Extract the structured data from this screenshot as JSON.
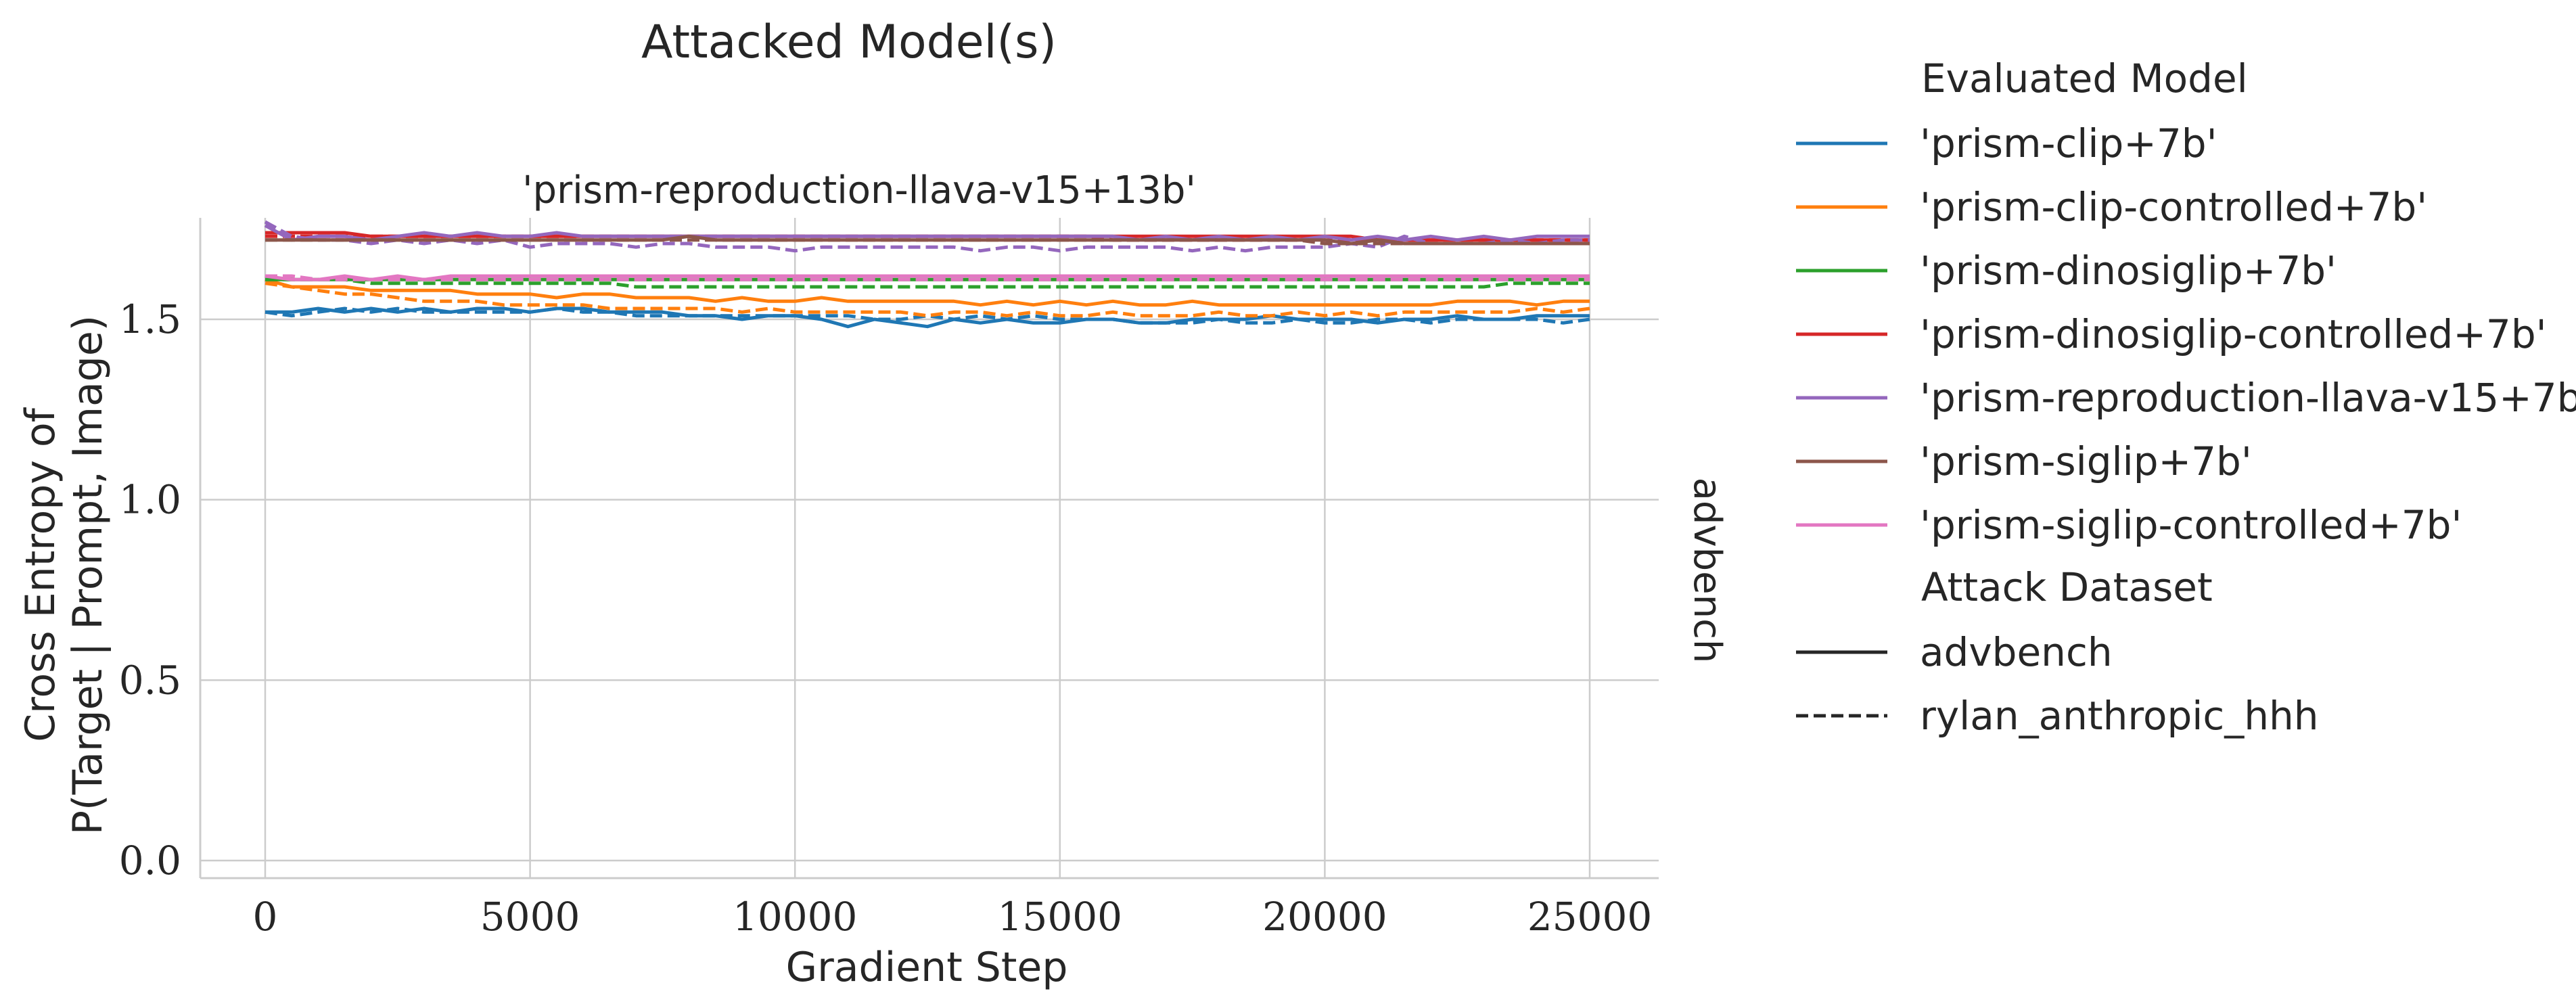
{
  "chart_data": {
    "type": "line",
    "suptitle": "Attacked Model(s)",
    "title": "'prism-reproduction-llava-v15+13b'",
    "xlabel": "Gradient Step",
    "ylabel_line1": "Cross Entropy of",
    "ylabel_line2": "P(Target | Prompt, Image)",
    "row_label": "advbench",
    "xlim": [
      -1200,
      26200
    ],
    "ylim": [
      -0.04,
      1.78
    ],
    "xticks": [
      0,
      5000,
      10000,
      15000,
      20000,
      25000
    ],
    "xtick_labels": [
      "0",
      "5000",
      "10000",
      "15000",
      "20000",
      "25000"
    ],
    "yticks": [
      0.0,
      0.5,
      1.0,
      1.5
    ],
    "ytick_labels": [
      "0.0",
      "0.5",
      "1.0",
      "1.5"
    ],
    "grid": true,
    "legend": {
      "placement": "right",
      "hue_title": "Evaluated Model",
      "hue_entries": [
        {
          "label": "'prism-clip+7b'",
          "color": "#1f77b4"
        },
        {
          "label": "'prism-clip-controlled+7b'",
          "color": "#ff7f0e"
        },
        {
          "label": "'prism-dinosiglip+7b'",
          "color": "#2ca02c"
        },
        {
          "label": "'prism-dinosiglip-controlled+7b'",
          "color": "#d62728"
        },
        {
          "label": "'prism-reproduction-llava-v15+7b'",
          "color": "#9467bd"
        },
        {
          "label": "'prism-siglip+7b'",
          "color": "#8c564b"
        },
        {
          "label": "'prism-siglip-controlled+7b'",
          "color": "#e377c2"
        }
      ],
      "style_title": "Attack Dataset",
      "style_entries": [
        {
          "label": "advbench",
          "dash": "solid"
        },
        {
          "label": "rylan_anthropic_hhh",
          "dash": "dashed"
        }
      ]
    },
    "x": [
      0,
      500,
      1000,
      1500,
      2000,
      2500,
      3000,
      3500,
      4000,
      4500,
      5000,
      5500,
      6000,
      6500,
      7000,
      7500,
      8000,
      8500,
      9000,
      9500,
      10000,
      10500,
      11000,
      11500,
      12000,
      12500,
      13000,
      13500,
      14000,
      14500,
      15000,
      15500,
      16000,
      16500,
      17000,
      17500,
      18000,
      18500,
      19000,
      19500,
      20000,
      20500,
      21000,
      21500,
      22000,
      22500,
      23000,
      23500,
      24000,
      24500,
      25000
    ],
    "series": [
      {
        "model": "'prism-clip+7b'",
        "dataset": "advbench",
        "color": "#1f77b4",
        "dash": "solid",
        "values": [
          1.52,
          1.52,
          1.53,
          1.52,
          1.53,
          1.52,
          1.53,
          1.52,
          1.53,
          1.53,
          1.52,
          1.53,
          1.53,
          1.52,
          1.52,
          1.52,
          1.51,
          1.51,
          1.5,
          1.51,
          1.51,
          1.5,
          1.48,
          1.5,
          1.49,
          1.48,
          1.5,
          1.49,
          1.5,
          1.49,
          1.49,
          1.5,
          1.5,
          1.49,
          1.49,
          1.5,
          1.5,
          1.5,
          1.51,
          1.5,
          1.5,
          1.5,
          1.49,
          1.5,
          1.5,
          1.51,
          1.5,
          1.5,
          1.51,
          1.51,
          1.51
        ]
      },
      {
        "model": "'prism-clip+7b'",
        "dataset": "rylan_anthropic_hhh",
        "color": "#1f77b4",
        "dash": "dashed",
        "values": [
          1.52,
          1.51,
          1.52,
          1.53,
          1.52,
          1.53,
          1.52,
          1.52,
          1.52,
          1.52,
          1.52,
          1.53,
          1.52,
          1.52,
          1.51,
          1.51,
          1.51,
          1.51,
          1.51,
          1.51,
          1.51,
          1.51,
          1.51,
          1.5,
          1.5,
          1.51,
          1.5,
          1.51,
          1.5,
          1.51,
          1.5,
          1.5,
          1.5,
          1.49,
          1.49,
          1.49,
          1.5,
          1.49,
          1.49,
          1.5,
          1.49,
          1.49,
          1.5,
          1.5,
          1.49,
          1.5,
          1.5,
          1.5,
          1.5,
          1.49,
          1.5
        ]
      },
      {
        "model": "'prism-clip-controlled+7b'",
        "dataset": "advbench",
        "color": "#ff7f0e",
        "dash": "solid",
        "values": [
          1.61,
          1.59,
          1.59,
          1.59,
          1.58,
          1.58,
          1.58,
          1.58,
          1.57,
          1.57,
          1.57,
          1.56,
          1.57,
          1.57,
          1.56,
          1.56,
          1.56,
          1.55,
          1.56,
          1.55,
          1.55,
          1.56,
          1.55,
          1.55,
          1.55,
          1.55,
          1.55,
          1.54,
          1.55,
          1.54,
          1.55,
          1.54,
          1.55,
          1.54,
          1.54,
          1.55,
          1.54,
          1.54,
          1.54,
          1.54,
          1.54,
          1.54,
          1.54,
          1.54,
          1.54,
          1.55,
          1.55,
          1.55,
          1.54,
          1.55,
          1.55
        ]
      },
      {
        "model": "'prism-clip-controlled+7b'",
        "dataset": "rylan_anthropic_hhh",
        "color": "#ff7f0e",
        "dash": "dashed",
        "values": [
          1.6,
          1.59,
          1.58,
          1.57,
          1.57,
          1.56,
          1.55,
          1.55,
          1.55,
          1.54,
          1.54,
          1.54,
          1.54,
          1.53,
          1.53,
          1.53,
          1.53,
          1.53,
          1.52,
          1.53,
          1.52,
          1.52,
          1.52,
          1.52,
          1.52,
          1.51,
          1.52,
          1.52,
          1.51,
          1.52,
          1.51,
          1.51,
          1.52,
          1.51,
          1.51,
          1.51,
          1.52,
          1.51,
          1.51,
          1.52,
          1.51,
          1.52,
          1.51,
          1.52,
          1.52,
          1.52,
          1.52,
          1.52,
          1.53,
          1.52,
          1.53
        ]
      },
      {
        "model": "'prism-dinosiglip+7b'",
        "dataset": "advbench",
        "color": "#2ca02c",
        "dash": "solid",
        "values": [
          1.61,
          1.61,
          1.61,
          1.61,
          1.61,
          1.61,
          1.61,
          1.61,
          1.61,
          1.61,
          1.61,
          1.61,
          1.61,
          1.61,
          1.61,
          1.61,
          1.61,
          1.61,
          1.61,
          1.61,
          1.61,
          1.61,
          1.61,
          1.61,
          1.61,
          1.61,
          1.61,
          1.61,
          1.61,
          1.61,
          1.61,
          1.61,
          1.61,
          1.61,
          1.61,
          1.61,
          1.61,
          1.61,
          1.61,
          1.61,
          1.61,
          1.61,
          1.61,
          1.61,
          1.61,
          1.61,
          1.61,
          1.61,
          1.61,
          1.61,
          1.61
        ]
      },
      {
        "model": "'prism-dinosiglip+7b'",
        "dataset": "rylan_anthropic_hhh",
        "color": "#2ca02c",
        "dash": "dashed",
        "values": [
          1.61,
          1.61,
          1.61,
          1.61,
          1.6,
          1.6,
          1.6,
          1.6,
          1.6,
          1.6,
          1.6,
          1.6,
          1.6,
          1.6,
          1.59,
          1.59,
          1.59,
          1.59,
          1.59,
          1.59,
          1.59,
          1.59,
          1.59,
          1.59,
          1.59,
          1.59,
          1.59,
          1.59,
          1.59,
          1.59,
          1.59,
          1.59,
          1.59,
          1.59,
          1.59,
          1.59,
          1.59,
          1.59,
          1.59,
          1.59,
          1.59,
          1.59,
          1.59,
          1.59,
          1.59,
          1.59,
          1.59,
          1.6,
          1.6,
          1.6,
          1.6
        ]
      },
      {
        "model": "'prism-dinosiglip-controlled+7b'",
        "dataset": "advbench",
        "color": "#d62728",
        "dash": "solid",
        "values": [
          1.74,
          1.74,
          1.74,
          1.74,
          1.73,
          1.73,
          1.73,
          1.73,
          1.73,
          1.73,
          1.73,
          1.73,
          1.73,
          1.73,
          1.73,
          1.73,
          1.73,
          1.73,
          1.73,
          1.73,
          1.73,
          1.73,
          1.73,
          1.73,
          1.73,
          1.73,
          1.73,
          1.73,
          1.73,
          1.73,
          1.73,
          1.73,
          1.73,
          1.73,
          1.73,
          1.73,
          1.73,
          1.73,
          1.73,
          1.73,
          1.73,
          1.73,
          1.72,
          1.72,
          1.72,
          1.72,
          1.72,
          1.72,
          1.72,
          1.72,
          1.72
        ]
      },
      {
        "model": "'prism-dinosiglip-controlled+7b'",
        "dataset": "rylan_anthropic_hhh",
        "color": "#d62728",
        "dash": "dashed",
        "values": [
          1.73,
          1.73,
          1.73,
          1.73,
          1.73,
          1.73,
          1.73,
          1.73,
          1.73,
          1.73,
          1.73,
          1.73,
          1.73,
          1.73,
          1.73,
          1.73,
          1.73,
          1.73,
          1.73,
          1.73,
          1.73,
          1.73,
          1.73,
          1.73,
          1.73,
          1.73,
          1.73,
          1.73,
          1.73,
          1.73,
          1.73,
          1.73,
          1.72,
          1.72,
          1.72,
          1.72,
          1.72,
          1.72,
          1.72,
          1.72,
          1.72,
          1.72,
          1.72,
          1.72,
          1.72,
          1.72,
          1.72,
          1.72,
          1.72,
          1.72,
          1.72
        ]
      },
      {
        "model": "'prism-reproduction-llava-v15+7b'",
        "dataset": "advbench",
        "color": "#9467bd",
        "dash": "solid",
        "values": [
          1.76,
          1.72,
          1.73,
          1.73,
          1.72,
          1.73,
          1.74,
          1.73,
          1.74,
          1.73,
          1.73,
          1.74,
          1.73,
          1.73,
          1.73,
          1.73,
          1.73,
          1.73,
          1.73,
          1.73,
          1.73,
          1.73,
          1.73,
          1.73,
          1.73,
          1.73,
          1.73,
          1.73,
          1.73,
          1.73,
          1.73,
          1.73,
          1.73,
          1.72,
          1.73,
          1.72,
          1.73,
          1.72,
          1.73,
          1.72,
          1.73,
          1.72,
          1.73,
          1.72,
          1.73,
          1.72,
          1.73,
          1.72,
          1.73,
          1.73,
          1.73
        ]
      },
      {
        "model": "'prism-reproduction-llava-v15+7b'",
        "dataset": "rylan_anthropic_hhh",
        "color": "#9467bd",
        "dash": "dashed",
        "values": [
          1.77,
          1.73,
          1.72,
          1.72,
          1.71,
          1.72,
          1.71,
          1.72,
          1.71,
          1.72,
          1.7,
          1.71,
          1.71,
          1.71,
          1.7,
          1.71,
          1.71,
          1.7,
          1.7,
          1.7,
          1.69,
          1.7,
          1.7,
          1.7,
          1.7,
          1.7,
          1.7,
          1.69,
          1.7,
          1.7,
          1.69,
          1.7,
          1.7,
          1.7,
          1.7,
          1.69,
          1.7,
          1.69,
          1.7,
          1.7,
          1.7,
          1.71,
          1.7,
          1.73,
          1.71,
          1.71,
          1.71,
          1.72,
          1.71,
          1.72,
          1.72
        ]
      },
      {
        "model": "'prism-siglip+7b'",
        "dataset": "advbench",
        "color": "#8c564b",
        "dash": "solid",
        "values": [
          1.72,
          1.72,
          1.72,
          1.72,
          1.72,
          1.72,
          1.72,
          1.72,
          1.72,
          1.72,
          1.72,
          1.72,
          1.72,
          1.72,
          1.72,
          1.72,
          1.73,
          1.72,
          1.72,
          1.72,
          1.72,
          1.72,
          1.72,
          1.72,
          1.72,
          1.72,
          1.72,
          1.72,
          1.72,
          1.72,
          1.72,
          1.72,
          1.72,
          1.72,
          1.72,
          1.72,
          1.72,
          1.72,
          1.72,
          1.72,
          1.72,
          1.71,
          1.72,
          1.71,
          1.71,
          1.71,
          1.71,
          1.71,
          1.71,
          1.71,
          1.71
        ]
      },
      {
        "model": "'prism-siglip+7b'",
        "dataset": "rylan_anthropic_hhh",
        "color": "#8c564b",
        "dash": "dashed",
        "values": [
          1.72,
          1.72,
          1.72,
          1.72,
          1.72,
          1.72,
          1.72,
          1.72,
          1.72,
          1.72,
          1.72,
          1.72,
          1.72,
          1.72,
          1.72,
          1.72,
          1.72,
          1.72,
          1.72,
          1.72,
          1.72,
          1.72,
          1.72,
          1.72,
          1.72,
          1.72,
          1.72,
          1.72,
          1.72,
          1.72,
          1.72,
          1.72,
          1.72,
          1.72,
          1.72,
          1.72,
          1.72,
          1.72,
          1.72,
          1.72,
          1.71,
          1.71,
          1.71,
          1.71,
          1.71,
          1.71,
          1.71,
          1.71,
          1.71,
          1.71,
          1.71
        ]
      },
      {
        "model": "'prism-siglip-controlled+7b'",
        "dataset": "advbench",
        "color": "#e377c2",
        "dash": "solid",
        "values": [
          1.62,
          1.61,
          1.61,
          1.62,
          1.61,
          1.62,
          1.61,
          1.62,
          1.62,
          1.62,
          1.62,
          1.62,
          1.62,
          1.62,
          1.62,
          1.62,
          1.62,
          1.62,
          1.62,
          1.62,
          1.62,
          1.62,
          1.62,
          1.62,
          1.62,
          1.62,
          1.62,
          1.62,
          1.62,
          1.62,
          1.62,
          1.62,
          1.62,
          1.62,
          1.62,
          1.62,
          1.62,
          1.62,
          1.62,
          1.62,
          1.62,
          1.62,
          1.62,
          1.62,
          1.62,
          1.62,
          1.62,
          1.62,
          1.62,
          1.62,
          1.62
        ]
      },
      {
        "model": "'prism-siglip-controlled+7b'",
        "dataset": "rylan_anthropic_hhh",
        "color": "#e377c2",
        "dash": "dashed",
        "values": [
          1.62,
          1.62,
          1.61,
          1.61,
          1.61,
          1.61,
          1.61,
          1.61,
          1.61,
          1.61,
          1.61,
          1.61,
          1.61,
          1.61,
          1.61,
          1.61,
          1.61,
          1.61,
          1.61,
          1.61,
          1.61,
          1.61,
          1.61,
          1.61,
          1.61,
          1.61,
          1.61,
          1.61,
          1.61,
          1.61,
          1.61,
          1.61,
          1.61,
          1.61,
          1.61,
          1.61,
          1.61,
          1.61,
          1.61,
          1.61,
          1.61,
          1.61,
          1.61,
          1.61,
          1.61,
          1.61,
          1.61,
          1.61,
          1.61,
          1.61,
          1.61
        ]
      }
    ]
  }
}
